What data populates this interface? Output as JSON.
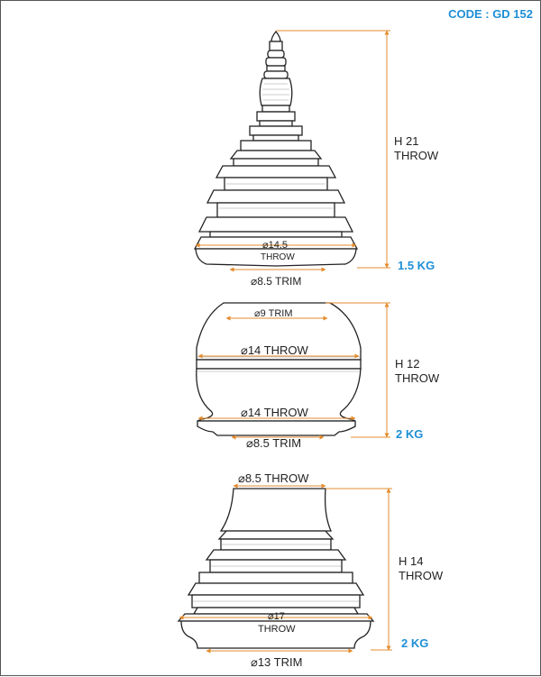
{
  "code": "CODE : GD 152",
  "accent_color": "#1e8fd6",
  "dimension_line_color": "#e38b2c",
  "pieces": [
    {
      "height_line1": "H 21",
      "height_line2": "THROW",
      "weight": "1.5 KG",
      "inner_dia_value": "14.5",
      "inner_dia_note": "THROW",
      "bottom_dia": "8.5 TRIM"
    },
    {
      "height_line1": "H 12",
      "height_line2": "THROW",
      "weight": "2 KG",
      "top_dia": "9 TRIM",
      "mid_dia": "14 THROW",
      "lower_dia": "14 THROW",
      "bottom_dia": "8.5 TRIM"
    },
    {
      "height_line1": "H 14",
      "height_line2": "THROW",
      "weight": "2 KG",
      "top_dia": "8.5 THROW",
      "inner_dia_value": "17",
      "inner_dia_note": "THROW",
      "bottom_dia": "13 TRIM"
    }
  ]
}
